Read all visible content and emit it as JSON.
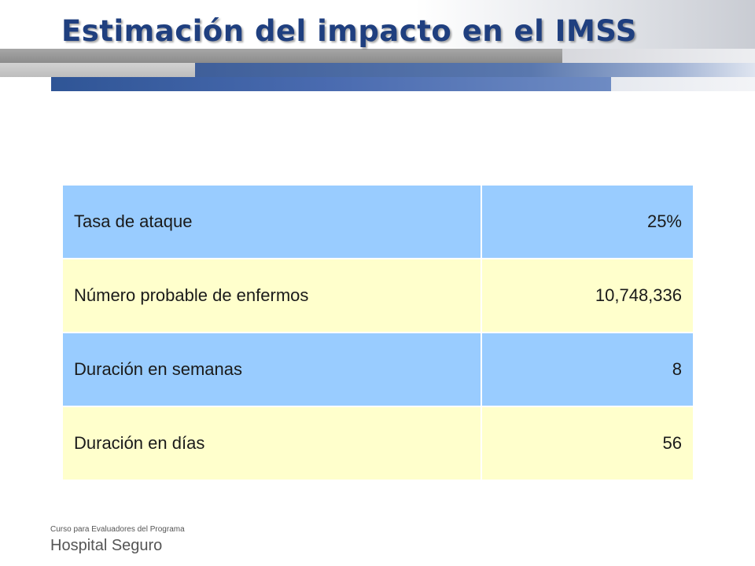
{
  "slide": {
    "title": "Estimación del impacto en el IMSS"
  },
  "table": {
    "rows": [
      {
        "label": "Tasa de ataque",
        "value": "25%"
      },
      {
        "label": "Número probable de enfermos",
        "value": "10,748,336"
      },
      {
        "label": "Duración en semanas",
        "value": "8"
      },
      {
        "label": "Duración en días",
        "value": "56"
      }
    ]
  },
  "footer": {
    "line1": "Curso para Evaluadores del Programa",
    "line2": "Hospital Seguro"
  },
  "colors": {
    "title": "#1f3f7f",
    "row_blue": "#99ccff",
    "row_yellow": "#ffffcc"
  }
}
